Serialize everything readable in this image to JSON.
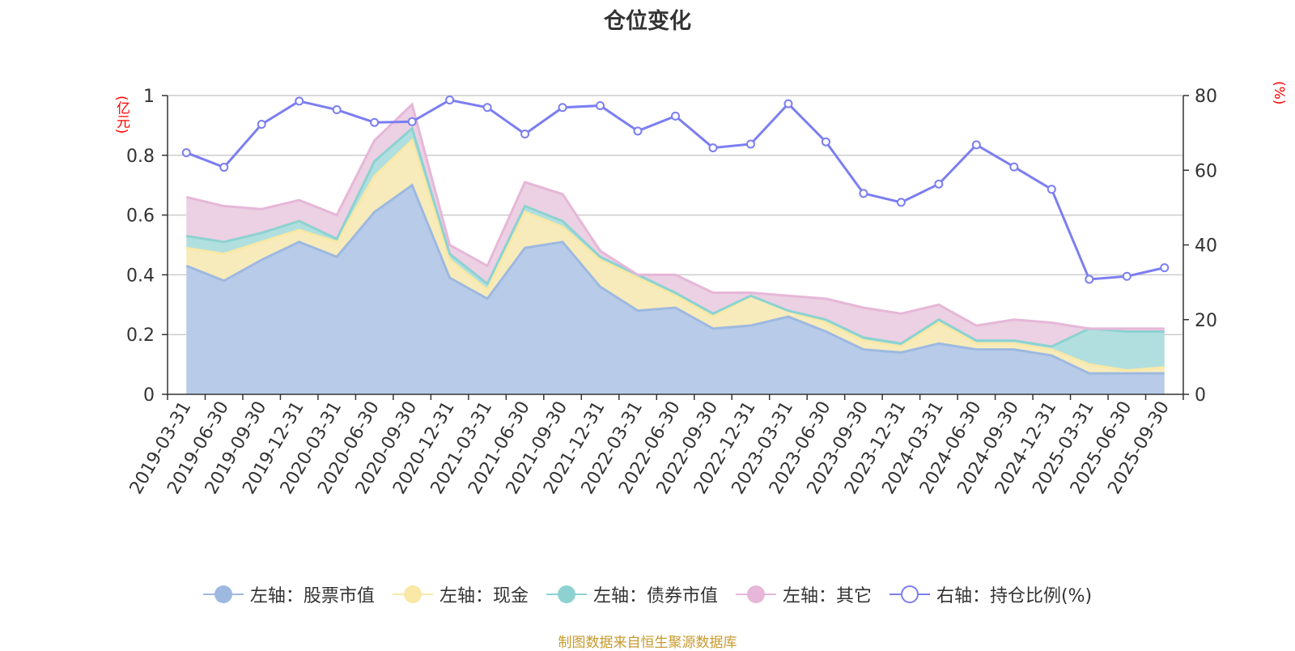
{
  "chart_data": {
    "type": "area",
    "title": "仓位变化",
    "left_axis": {
      "unit": "(亿元)",
      "ylim": [
        0,
        1
      ],
      "ticks": [
        "0",
        "0.2",
        "0.4",
        "0.6",
        "0.8",
        "1"
      ]
    },
    "right_axis": {
      "unit": "(%)",
      "ylim": [
        0,
        80
      ],
      "ticks": [
        "0",
        "20",
        "40",
        "60",
        "80"
      ]
    },
    "categories": [
      "2019-03-31",
      "2019-06-30",
      "2019-09-30",
      "2019-12-31",
      "2020-03-31",
      "2020-06-30",
      "2020-09-30",
      "2020-12-31",
      "2021-03-31",
      "2021-06-30",
      "2021-09-30",
      "2021-12-31",
      "2022-03-31",
      "2022-06-30",
      "2022-09-30",
      "2022-12-31",
      "2023-03-31",
      "2023-06-30",
      "2023-09-30",
      "2023-12-31",
      "2024-03-31",
      "2024-06-30",
      "2024-09-30",
      "2024-12-31",
      "2025-03-31",
      "2025-06-30",
      "2025-09-30"
    ],
    "stacked": true,
    "series": [
      {
        "name": "左轴：股票市值",
        "axis": "left",
        "color": "#9db9e0",
        "fill": "#b8cbe9",
        "values": [
          0.43,
          0.38,
          0.45,
          0.51,
          0.46,
          0.61,
          0.7,
          0.39,
          0.32,
          0.49,
          0.51,
          0.36,
          0.28,
          0.29,
          0.22,
          0.23,
          0.26,
          0.21,
          0.15,
          0.14,
          0.17,
          0.15,
          0.15,
          0.13,
          0.07,
          0.07,
          0.07
        ]
      },
      {
        "name": "左轴：现金",
        "axis": "left",
        "color": "#f9e8a6",
        "fill": "#f8ebbb",
        "values": [
          0.06,
          0.09,
          0.06,
          0.04,
          0.05,
          0.12,
          0.15,
          0.06,
          0.03,
          0.12,
          0.05,
          0.09,
          0.11,
          0.04,
          0.04,
          0.1,
          0.02,
          0.03,
          0.03,
          0.02,
          0.07,
          0.02,
          0.02,
          0.02,
          0.03,
          0.01,
          0.02
        ]
      },
      {
        "name": "左轴：债券市值",
        "axis": "left",
        "color": "#8dd2d1",
        "fill": "#b1dfdf",
        "values": [
          0.04,
          0.04,
          0.03,
          0.03,
          0.01,
          0.05,
          0.04,
          0.02,
          0.02,
          0.02,
          0.02,
          0.01,
          0.01,
          0.01,
          0.01,
          0.0,
          0.0,
          0.01,
          0.01,
          0.01,
          0.01,
          0.01,
          0.01,
          0.01,
          0.12,
          0.13,
          0.12
        ]
      },
      {
        "name": "左轴：其它",
        "axis": "left",
        "color": "#e6b7d8",
        "fill": "#ecd0e3",
        "values": [
          0.13,
          0.12,
          0.08,
          0.07,
          0.08,
          0.07,
          0.08,
          0.03,
          0.06,
          0.08,
          0.09,
          0.02,
          0.0,
          0.06,
          0.07,
          0.01,
          0.05,
          0.07,
          0.1,
          0.1,
          0.05,
          0.05,
          0.07,
          0.08,
          0.0,
          0.01,
          0.01
        ]
      },
      {
        "name": "右轴：持仓比例(%)",
        "axis": "right",
        "type": "line",
        "color": "#7b7ef0",
        "values": [
          64.7,
          60.8,
          72.3,
          78.5,
          76.2,
          72.8,
          73.0,
          78.8,
          76.8,
          69.7,
          76.8,
          77.3,
          70.5,
          74.5,
          66.0,
          67.0,
          77.8,
          67.6,
          53.8,
          51.4,
          56.3,
          66.8,
          60.9,
          54.9,
          30.8,
          31.6,
          33.9
        ]
      }
    ],
    "gridlines": true,
    "legend_position": "bottom-center"
  },
  "legend": [
    {
      "label": "左轴：股票市值",
      "color": "#9db9e0",
      "hollow": false
    },
    {
      "label": "左轴：现金",
      "color": "#f9e8a6",
      "hollow": false
    },
    {
      "label": "左轴：债券市值",
      "color": "#8dd2d1",
      "hollow": false
    },
    {
      "label": "左轴：其它",
      "color": "#e6b7d8",
      "hollow": false
    },
    {
      "label": "右轴：持仓比例(%)",
      "color": "#7b7ef0",
      "hollow": true
    }
  ],
  "source": "制图数据来自恒生聚源数据库"
}
